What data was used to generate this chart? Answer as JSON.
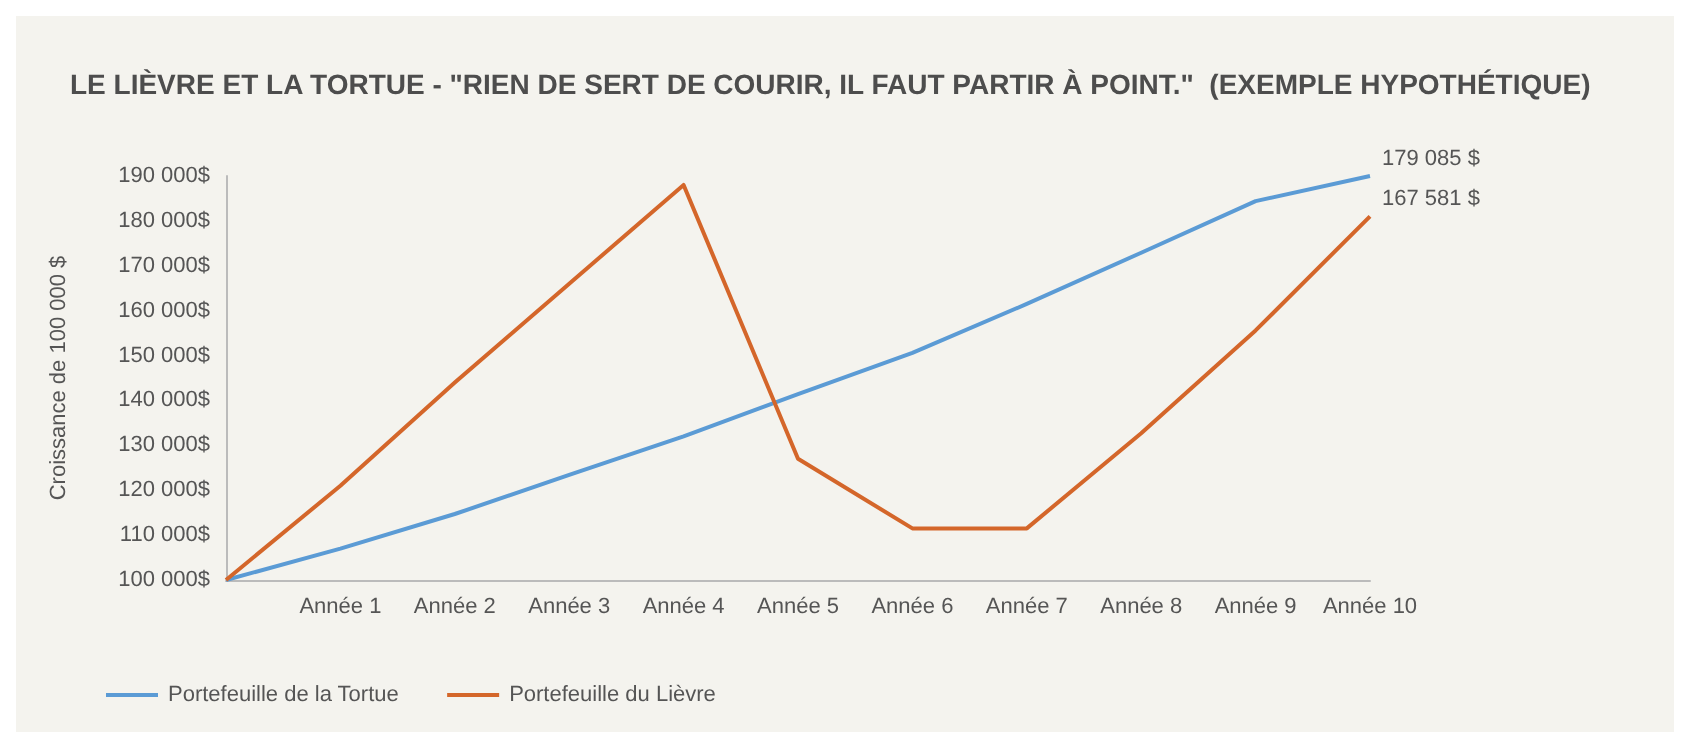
{
  "chart_data": {
    "type": "line",
    "title": "LE LIÈVRE ET LA TORTUE - \"RIEN DE SERT DE COURIR, IL FAUT PARTIR À POINT.\"  (EXEMPLE HYPOTHÉTIQUE)",
    "ylabel": "Croissance de 100 000 $",
    "categories": [
      null,
      "Année 1",
      "Année 2",
      "Année 3",
      "Année 4",
      "Année 5",
      "Année 6",
      "Année 7",
      "Année 8",
      "Année 9",
      "Année 10"
    ],
    "series": [
      {
        "name": "Portefeuille de la Tortue",
        "color": "#5b9bd5",
        "values": [
          100000,
          107000,
          114700,
          123400,
          132000,
          141400,
          150600,
          161500,
          172900,
          184400,
          190000
        ]
      },
      {
        "name": "Portefeuille du Lièvre",
        "color": "#d4662a",
        "values": [
          100000,
          121000,
          144000,
          166000,
          188000,
          127000,
          111500,
          111500,
          132700,
          155600,
          181000
        ]
      }
    ],
    "annotations": [
      "179 085 $",
      "167 581 $"
    ],
    "ylim": [
      100000,
      190000
    ],
    "yticks": [
      {
        "value": 100000,
        "label": "100 000$"
      },
      {
        "value": 110000,
        "label": "110 000$"
      },
      {
        "value": 120000,
        "label": "120 000$"
      },
      {
        "value": 130000,
        "label": "130 000$"
      },
      {
        "value": 140000,
        "label": "140 000$"
      },
      {
        "value": 150000,
        "label": "150 000$"
      },
      {
        "value": 160000,
        "label": "160 000$"
      },
      {
        "value": 170000,
        "label": "170 000$"
      },
      {
        "value": 180000,
        "label": "180 000$"
      },
      {
        "value": 190000,
        "label": "190 000$"
      }
    ],
    "grid": false,
    "legend": "bottom left",
    "marker": "none",
    "line_style": "solid"
  }
}
